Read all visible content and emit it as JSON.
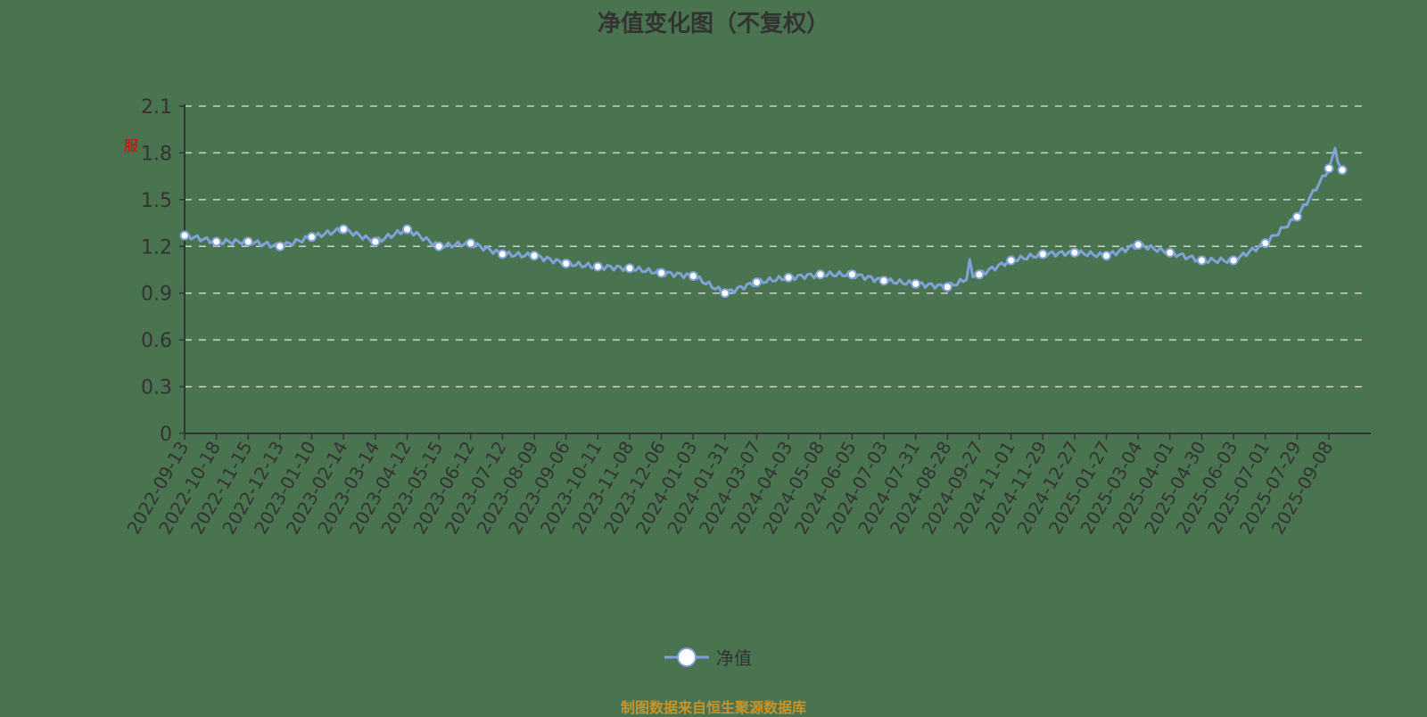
{
  "title": "净值变化图（不复权）",
  "legend": {
    "label": "净值"
  },
  "source": "制图数据来自恒生聚源数据库",
  "marker": "服",
  "colors": {
    "line": "#7fa3d8",
    "background": "#4a7350",
    "axis": "#333333",
    "grid": "#d0d0d0",
    "source": "#c8942a"
  },
  "chart_data": {
    "type": "line",
    "title": "净值变化图（不复权）",
    "xlabel": "",
    "ylabel": "",
    "ylim": [
      0,
      2.1
    ],
    "yticks": [
      0,
      0.3,
      0.6,
      0.9,
      1.2,
      1.5,
      1.8,
      2.1
    ],
    "grid": "horizontal dashed",
    "legend_position": "bottom",
    "categories": [
      "2022-09-13",
      "2022-10-18",
      "2022-11-15",
      "2022-12-13",
      "2023-01-10",
      "2023-02-14",
      "2023-03-14",
      "2023-04-12",
      "2023-05-15",
      "2023-06-12",
      "2023-07-12",
      "2023-08-09",
      "2023-09-06",
      "2023-10-11",
      "2023-11-08",
      "2023-12-06",
      "2024-01-03",
      "2024-01-31",
      "2024-03-07",
      "2024-04-03",
      "2024-05-08",
      "2024-06-05",
      "2024-07-03",
      "2024-07-31",
      "2024-08-28",
      "2024-09-27",
      "2024-11-01",
      "2024-11-29",
      "2024-12-27",
      "2025-01-27",
      "2025-03-04",
      "2025-04-01",
      "2025-04-30",
      "2025-06-03",
      "2025-07-01",
      "2025-07-29",
      "2025-09-08"
    ],
    "series": [
      {
        "name": "净值",
        "values": [
          1.27,
          1.23,
          1.23,
          1.2,
          1.26,
          1.31,
          1.23,
          1.31,
          1.2,
          1.22,
          1.15,
          1.14,
          1.09,
          1.07,
          1.06,
          1.03,
          1.01,
          0.9,
          0.97,
          1.0,
          1.02,
          1.02,
          0.98,
          0.96,
          0.94,
          1.02,
          1.11,
          1.15,
          1.16,
          1.14,
          1.21,
          1.16,
          1.11,
          1.11,
          1.22,
          1.39,
          1.7
        ],
        "end_value": 1.69,
        "peak": 1.83
      }
    ]
  }
}
